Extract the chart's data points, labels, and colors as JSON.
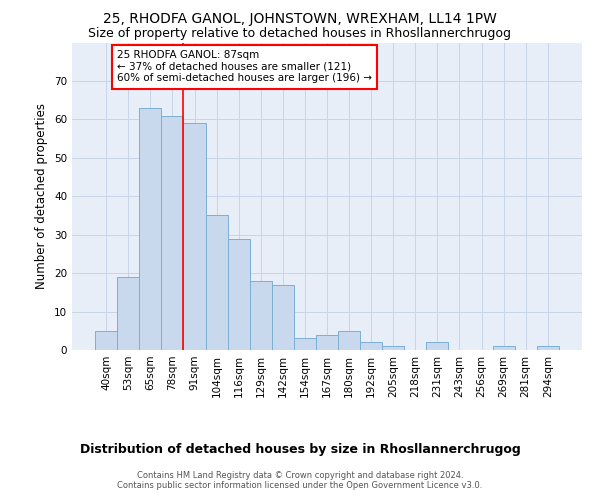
{
  "title": "25, RHODFA GANOL, JOHNSTOWN, WREXHAM, LL14 1PW",
  "subtitle": "Size of property relative to detached houses in Rhosllannerchrugog",
  "xlabel": "Distribution of detached houses by size in Rhosllannerchrugog",
  "ylabel": "Number of detached properties",
  "categories": [
    "40sqm",
    "53sqm",
    "65sqm",
    "78sqm",
    "91sqm",
    "104sqm",
    "116sqm",
    "129sqm",
    "142sqm",
    "154sqm",
    "167sqm",
    "180sqm",
    "192sqm",
    "205sqm",
    "218sqm",
    "231sqm",
    "243sqm",
    "256sqm",
    "269sqm",
    "281sqm",
    "294sqm"
  ],
  "bar_values": [
    5,
    19,
    63,
    61,
    59,
    35,
    29,
    18,
    17,
    3,
    4,
    5,
    2,
    1,
    0,
    2,
    0,
    0,
    1,
    0,
    1
  ],
  "bar_color": "#c9d9ed",
  "bar_edge_color": "#7bafd4",
  "vline_index": 3.5,
  "vline_color": "red",
  "annotation_text": "25 RHODFA GANOL: 87sqm\n← 37% of detached houses are smaller (121)\n60% of semi-detached houses are larger (196) →",
  "annotation_box_color": "white",
  "annotation_box_edge": "red",
  "ylim": [
    0,
    80
  ],
  "yticks": [
    0,
    10,
    20,
    30,
    40,
    50,
    60,
    70
  ],
  "grid_color": "#c8d4e8",
  "footer": "Contains HM Land Registry data © Crown copyright and database right 2024.\nContains public sector information licensed under the Open Government Licence v3.0.",
  "bg_color": "#e8eef8",
  "title_fontsize": 10,
  "subtitle_fontsize": 9,
  "ylabel_fontsize": 8.5,
  "xlabel_fontsize": 9,
  "tick_fontsize": 7.5,
  "annotation_fontsize": 7.5
}
